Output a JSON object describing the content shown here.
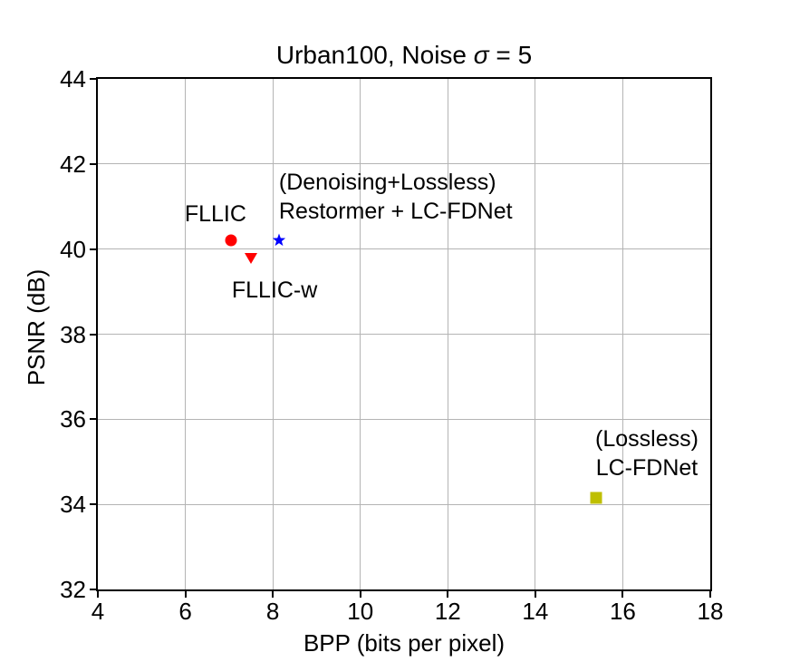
{
  "figure": {
    "title": {
      "prefix": "Urban100, Noise ",
      "sigma": "σ",
      "suffix": " = 5"
    }
  },
  "chart_data": {
    "type": "scatter",
    "title": "Urban100, Noise σ = 5",
    "xlabel": "BPP (bits per pixel)",
    "ylabel": "PSNR (dB)",
    "xlim": [
      4,
      18
    ],
    "ylim": [
      32,
      44
    ],
    "xticks": [
      4,
      6,
      8,
      10,
      12,
      14,
      16,
      18
    ],
    "yticks": [
      32,
      34,
      36,
      38,
      40,
      42,
      44
    ],
    "grid": true,
    "grid_color": "#b4b4b4",
    "legend": "none",
    "points": [
      {
        "id": "fllic",
        "name": "FLLIC",
        "marker": "circle",
        "color": "#ff0000",
        "x": 7.05,
        "y": 40.2,
        "annotation": {
          "lines": [
            "FLLIC"
          ],
          "anchor_x": 6.69,
          "anchor_y": 40.82,
          "align": "center"
        }
      },
      {
        "id": "fllic-w",
        "name": "FLLIC-w",
        "marker": "triangle-down",
        "color": "#ff0000",
        "x": 7.5,
        "y": 39.8,
        "annotation": {
          "lines": [
            "FLLIC-w"
          ],
          "anchor_x": 8.04,
          "anchor_y": 39.03,
          "align": "center"
        }
      },
      {
        "id": "restormer-lc-fdnet",
        "name": "(Denoising+Lossless) Restormer + LC-FDNet",
        "marker": "star",
        "color": "#0000ff",
        "x": 8.15,
        "y": 40.2,
        "annotation": {
          "lines": [
            "(Denoising+Lossless)",
            "Restormer + LC-FDNet"
          ],
          "anchor_x": 8.14,
          "anchor_y": 41.22,
          "align": "left"
        }
      },
      {
        "id": "lc-fdnet",
        "name": "(Lossless) LC-FDNet",
        "marker": "square",
        "color": "#bfbf00",
        "x": 15.4,
        "y": 34.15,
        "annotation": {
          "lines": [
            "(Lossless)",
            "LC-FDNet"
          ],
          "anchor_x": 16.55,
          "anchor_y": 35.2,
          "align": "center"
        }
      }
    ]
  }
}
